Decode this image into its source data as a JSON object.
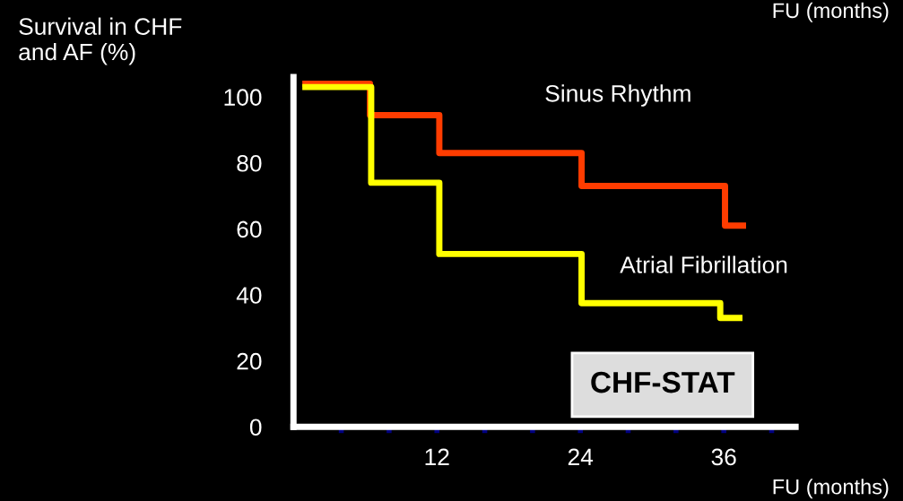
{
  "chart_data": {
    "type": "step",
    "ylabel": "Survival in CHF\nand AF (%)",
    "xlabel": "FU (months)",
    "annotations": [
      "FU (months)",
      "CHF-STAT"
    ],
    "series": [
      {
        "name": "Sinus Rhythm",
        "color": "#ff3c00",
        "x": [
          1,
          6.4,
          12.2,
          24.1,
          36.1,
          37.6
        ],
        "values": [
          104,
          94.5,
          83,
          73,
          61,
          61
        ]
      },
      {
        "name": "Atrial Fibrillation",
        "color": "#ffff00",
        "x": [
          1,
          6.5,
          12.2,
          24.1,
          35.7,
          37.3
        ],
        "values": [
          103,
          74,
          52.4,
          37.5,
          33,
          33
        ]
      }
    ],
    "xlim": [
      0,
      42
    ],
    "ylim": [
      0,
      106
    ],
    "xticks": [
      {
        "value": 4,
        "label": null
      },
      {
        "value": 8,
        "label": null
      },
      12,
      {
        "value": 16,
        "label": null
      },
      {
        "value": 20,
        "label": null
      },
      24,
      {
        "value": 28,
        "label": null
      },
      {
        "value": 32,
        "label": null
      },
      36,
      {
        "value": 40,
        "label": null
      }
    ],
    "yticks": [
      0,
      20,
      40,
      60,
      80,
      100
    ],
    "grid": false,
    "legend": false
  }
}
